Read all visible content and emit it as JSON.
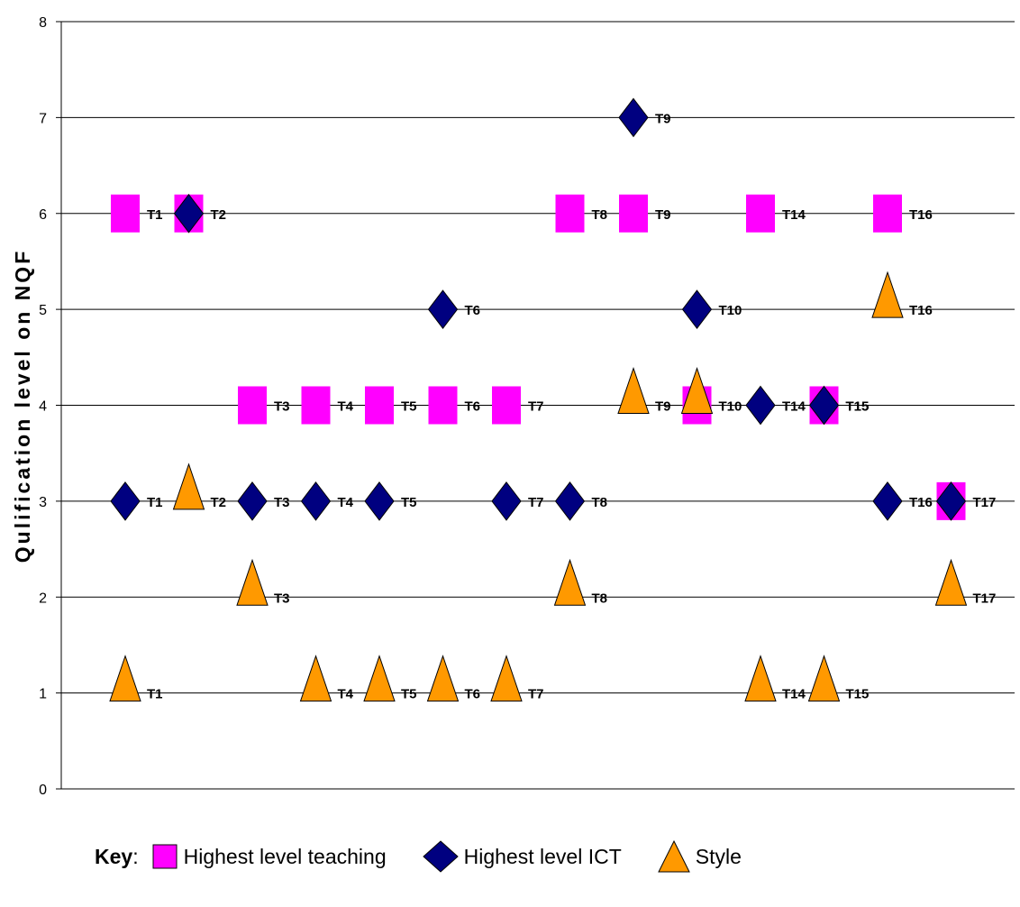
{
  "chart_data": {
    "type": "scatter",
    "ylabel": "Qulification level on NQF",
    "xlabel": "",
    "ylim": [
      0,
      8
    ],
    "yticks": [
      "0",
      "1",
      "2",
      "3",
      "4",
      "5",
      "6",
      "7",
      "8"
    ],
    "grid": "horizontal",
    "legend_position": "bottom",
    "series": [
      {
        "name": "Highest level teaching",
        "marker": "square",
        "color": "#FF00FF",
        "points": [
          {
            "x": 1,
            "y": 6,
            "label": "T1"
          },
          {
            "x": 2,
            "y": 6,
            "label": ""
          },
          {
            "x": 3,
            "y": 4,
            "label": "T3"
          },
          {
            "x": 4,
            "y": 4,
            "label": "T4"
          },
          {
            "x": 5,
            "y": 4,
            "label": "T5"
          },
          {
            "x": 6,
            "y": 4,
            "label": "T6"
          },
          {
            "x": 7,
            "y": 4,
            "label": "T7"
          },
          {
            "x": 8,
            "y": 6,
            "label": "T8"
          },
          {
            "x": 9,
            "y": 6,
            "label": "T9"
          },
          {
            "x": 10,
            "y": 4,
            "label": ""
          },
          {
            "x": 11,
            "y": 6,
            "label": "T14"
          },
          {
            "x": 12,
            "y": 4,
            "label": "T15"
          },
          {
            "x": 13,
            "y": 6,
            "label": "T16"
          },
          {
            "x": 14,
            "y": 3,
            "label": ""
          }
        ]
      },
      {
        "name": "Highest level ICT",
        "marker": "diamond",
        "color": "#000080",
        "points": [
          {
            "x": 1,
            "y": 3,
            "label": "T1"
          },
          {
            "x": 2,
            "y": 6,
            "label": "T2"
          },
          {
            "x": 3,
            "y": 3,
            "label": "T3"
          },
          {
            "x": 4,
            "y": 3,
            "label": "T4"
          },
          {
            "x": 5,
            "y": 3,
            "label": "T5"
          },
          {
            "x": 6,
            "y": 5,
            "label": "T6"
          },
          {
            "x": 7,
            "y": 3,
            "label": "T7"
          },
          {
            "x": 8,
            "y": 3,
            "label": "T8"
          },
          {
            "x": 9,
            "y": 7,
            "label": "T9"
          },
          {
            "x": 10,
            "y": 5,
            "label": "T10"
          },
          {
            "x": 11,
            "y": 4,
            "label": "T14"
          },
          {
            "x": 12,
            "y": 4,
            "label": "T15"
          },
          {
            "x": 13,
            "y": 3,
            "label": "T16"
          },
          {
            "x": 14,
            "y": 3,
            "label": "T17"
          }
        ]
      },
      {
        "name": "Style",
        "marker": "triangle",
        "color": "#FF9900",
        "points": [
          {
            "x": 1,
            "y": 1,
            "label": "T1"
          },
          {
            "x": 2,
            "y": 3,
            "label": "T2"
          },
          {
            "x": 3,
            "y": 2,
            "label": "T3"
          },
          {
            "x": 4,
            "y": 1,
            "label": "T4"
          },
          {
            "x": 5,
            "y": 1,
            "label": "T5"
          },
          {
            "x": 6,
            "y": 1,
            "label": "T6"
          },
          {
            "x": 7,
            "y": 1,
            "label": "T7"
          },
          {
            "x": 8,
            "y": 2,
            "label": "T8"
          },
          {
            "x": 9,
            "y": 4,
            "label": "T9"
          },
          {
            "x": 10,
            "y": 4,
            "label": "T10"
          },
          {
            "x": 11,
            "y": 1,
            "label": "T14"
          },
          {
            "x": 12,
            "y": 1,
            "label": "T15"
          },
          {
            "x": 13,
            "y": 5,
            "label": "T16"
          },
          {
            "x": 14,
            "y": 2,
            "label": "T17"
          }
        ]
      }
    ]
  },
  "legend": {
    "title": "Key",
    "separator": ":",
    "items": [
      {
        "label": "Highest level teaching",
        "marker": "square",
        "color": "#FF00FF"
      },
      {
        "label": "Highest level ICT",
        "marker": "diamond",
        "color": "#000080"
      },
      {
        "label": "Style",
        "marker": "triangle",
        "color": "#FF9900"
      }
    ]
  }
}
